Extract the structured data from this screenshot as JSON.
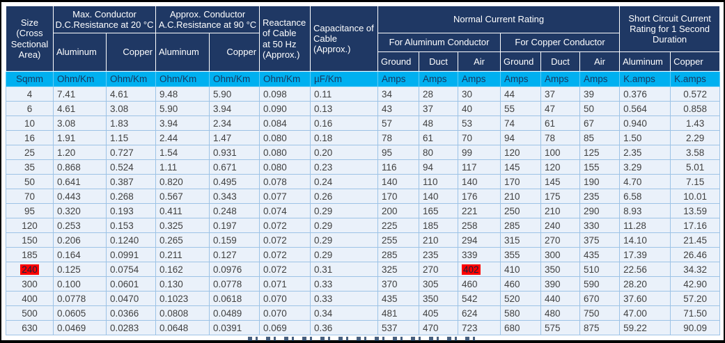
{
  "table": {
    "header": {
      "size": "Size\n(Cross\nSectional\nArea)",
      "dc_group": "Max. Conductor\nD.C.Resistance at 20 °C",
      "ac_group": "Approx. Conductor\nA.C.Resistance at 90 °C",
      "col_aluminum": "Aluminum",
      "col_copper": "Copper",
      "reactance": "Reactance\nof Cable\nat 50 Hz\n(Approx.)",
      "capacitance": "Capacitance of\nCable (Approx.)",
      "normal_group": "Normal Current Rating",
      "for_aluminum": "For Aluminum Conductor",
      "for_copper": "For Copper Conductor",
      "ground": "Ground",
      "duct": "Duct",
      "air": "Air",
      "short_circuit_group": "Short Circuit Current\nRating for 1 Second\nDuration"
    },
    "units": [
      "Sqmm",
      "Ohm/Km",
      "Ohm/Km",
      "Ohm/Km",
      "Ohm/Km",
      "Ohm/Km",
      "µF/Km",
      "Amps",
      "Amps",
      "Amps",
      "Amps",
      "Amps",
      "Amps",
      "K.amps",
      "K.amps"
    ],
    "rows": [
      [
        "4",
        "7.41",
        "4.61",
        "9.48",
        "5.90",
        "0.098",
        "0.11",
        "34",
        "28",
        "30",
        "44",
        "37",
        "39",
        "0.376",
        "0.572"
      ],
      [
        "6",
        "4.61",
        "3.08",
        "5.90",
        "3.94",
        "0.090",
        "0.13",
        "43",
        "37",
        "40",
        "55",
        "47",
        "50",
        "0.564",
        "0.858"
      ],
      [
        "10",
        "3.08",
        "1.83",
        "3.94",
        "2.34",
        "0.084",
        "0.16",
        "57",
        "48",
        "53",
        "74",
        "61",
        "67",
        "0.940",
        "1.43"
      ],
      [
        "16",
        "1.91",
        "1.15",
        "2.44",
        "1.47",
        "0.080",
        "0.18",
        "78",
        "61",
        "70",
        "94",
        "78",
        "85",
        "1.50",
        "2.29"
      ],
      [
        "25",
        "1.20",
        "0.727",
        "1.54",
        "0.931",
        "0.080",
        "0.20",
        "95",
        "80",
        "99",
        "120",
        "100",
        "125",
        "2.35",
        "3.58"
      ],
      [
        "35",
        "0.868",
        "0.524",
        "1.11",
        "0.671",
        "0.080",
        "0.23",
        "116",
        "94",
        "117",
        "145",
        "120",
        "155",
        "3.29",
        "5.01"
      ],
      [
        "50",
        "0.641",
        "0.387",
        "0.820",
        "0.495",
        "0.078",
        "0.24",
        "140",
        "110",
        "140",
        "170",
        "145",
        "190",
        "4.70",
        "7.15"
      ],
      [
        "70",
        "0.443",
        "0.268",
        "0.567",
        "0.343",
        "0.077",
        "0.26",
        "170",
        "140",
        "176",
        "210",
        "175",
        "235",
        "6.58",
        "10.01"
      ],
      [
        "95",
        "0.320",
        "0.193",
        "0.411",
        "0.248",
        "0.074",
        "0.29",
        "200",
        "165",
        "221",
        "250",
        "210",
        "290",
        "8.93",
        "13.59"
      ],
      [
        "120",
        "0.253",
        "0.153",
        "0.325",
        "0.197",
        "0.072",
        "0.29",
        "225",
        "185",
        "258",
        "285",
        "240",
        "330",
        "11.28",
        "17.16"
      ],
      [
        "150",
        "0.206",
        "0.1240",
        "0.265",
        "0.159",
        "0.072",
        "0.29",
        "255",
        "210",
        "294",
        "315",
        "270",
        "375",
        "14.10",
        "21.45"
      ],
      [
        "185",
        "0.164",
        "0.0991",
        "0.211",
        "0.127",
        "0.072",
        "0.29",
        "285",
        "235",
        "339",
        "355",
        "300",
        "435",
        "17.39",
        "26.46"
      ],
      [
        "240",
        "0.125",
        "0.0754",
        "0.162",
        "0.0976",
        "0.072",
        "0.31",
        "325",
        "270",
        "402",
        "410",
        "350",
        "510",
        "22.56",
        "34.32"
      ],
      [
        "300",
        "0.100",
        "0.0601",
        "0.130",
        "0.0778",
        "0.071",
        "0.33",
        "370",
        "305",
        "460",
        "460",
        "390",
        "590",
        "28.20",
        "42.90"
      ],
      [
        "400",
        "0.0778",
        "0.0470",
        "0.1023",
        "0.0618",
        "0.070",
        "0.33",
        "435",
        "350",
        "542",
        "520",
        "440",
        "670",
        "37.60",
        "57.20"
      ],
      [
        "500",
        "0.0605",
        "0.0366",
        "0.0808",
        "0.0489",
        "0.070",
        "0.34",
        "481",
        "405",
        "624",
        "580",
        "480",
        "750",
        "47.00",
        "71.50"
      ],
      [
        "630",
        "0.0469",
        "0.0283",
        "0.0648",
        "0.0391",
        "0.069",
        "0.36",
        "537",
        "470",
        "723",
        "680",
        "575",
        "875",
        "59.22",
        "90.09"
      ]
    ],
    "highlighted_cells": [
      [
        12,
        0
      ],
      [
        12,
        9
      ]
    ],
    "highlight_color": "#FF0000",
    "header_color": "#1F3864",
    "units_color": "#00B0F0"
  }
}
